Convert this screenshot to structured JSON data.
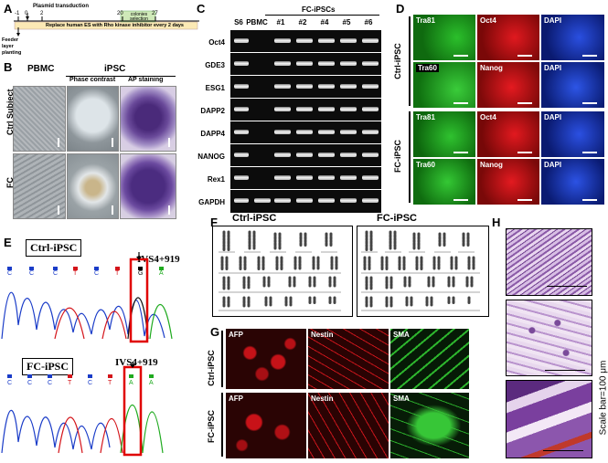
{
  "panels": {
    "A": {
      "label": "A",
      "plasmid": "Plasmid transduction",
      "days": [
        "-1",
        "0",
        "2",
        "20",
        "27"
      ],
      "colonies": "colonies selection",
      "feeder": "Feeder layer planting",
      "replace": "Replace human ES with Rho kinase inhibitor every 2 days"
    },
    "B": {
      "label": "B",
      "pbmc": "PBMC",
      "ipsc": "iPSC",
      "phase": "Phase contrast",
      "ap": "AP staining",
      "rows": [
        "Ctrl Subject",
        "FC"
      ]
    },
    "C": {
      "label": "C",
      "lanes": [
        "S6",
        "PBMC",
        "#1",
        "#2",
        "#4",
        "#5",
        "#6"
      ],
      "group": "FC-iPSCs",
      "genes": [
        "Oct4",
        "GDE3",
        "ESG1",
        "DAPP2",
        "DAPP4",
        "NANOG",
        "Rex1",
        "GAPDH"
      ]
    },
    "D": {
      "label": "D",
      "rows": [
        "Ctrl-iPSC",
        "FC-iPSC"
      ],
      "tiles": [
        [
          "Tra81",
          "Oct4",
          "DAPI"
        ],
        [
          "Tra60",
          "Nanog",
          "DAPI"
        ],
        [
          "Tra81",
          "Oct4",
          "DAPI"
        ],
        [
          "Tra60",
          "Nanog",
          "DAPI"
        ]
      ]
    },
    "E": {
      "label": "E",
      "ctrl": "Ctrl-iPSC",
      "fc": "FC-iPSC",
      "site": "IVS4+919",
      "seq_ctrl": [
        "C",
        "C",
        "C",
        "T",
        "C",
        "T",
        "G",
        "A"
      ],
      "seq_fc": [
        "C",
        "C",
        "C",
        "T",
        "C",
        "T",
        "A",
        "A"
      ]
    },
    "F": {
      "label": "F",
      "ctrl": "Ctrl-iPSC",
      "fc": "FC-iPSC"
    },
    "G": {
      "label": "G",
      "rows": [
        "Ctrl-iPSC",
        "FC-iPSC"
      ],
      "markers": [
        "AFP",
        "Nestin",
        "SMA"
      ]
    },
    "H": {
      "label": "H",
      "scale": "Scale bar=100 μm"
    }
  },
  "colors": {
    "green": "#1faa1f",
    "red": "#d4141a",
    "blue": "#1a3cc8",
    "highlight": "#e00000"
  }
}
